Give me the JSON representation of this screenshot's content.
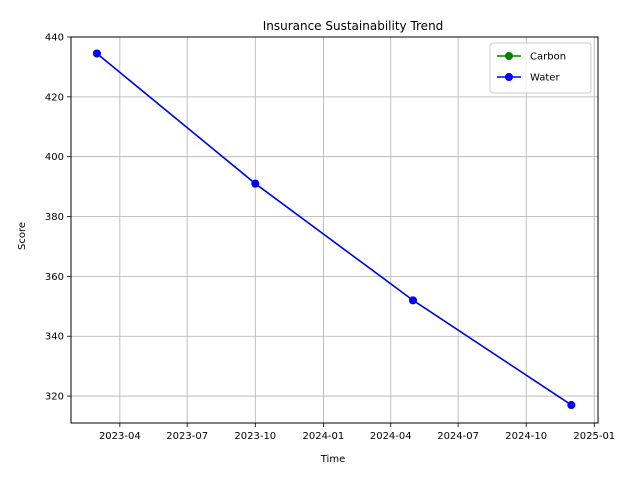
{
  "chart_data": {
    "type": "line",
    "title": "Insurance Sustainability Trend",
    "xlabel": "Time",
    "ylabel": "Score",
    "x": [
      "2023-03-01",
      "2023-10-01",
      "2024-05-01",
      "2024-12-01"
    ],
    "series": [
      {
        "name": "Carbon",
        "color": "#008000",
        "marker": "circle",
        "values": [
          434.5,
          391.0,
          352.0,
          317.0
        ]
      },
      {
        "name": "Water",
        "color": "#0000ff",
        "marker": "circle",
        "values": [
          434.5,
          391.0,
          352.0,
          317.0
        ]
      }
    ],
    "xlim": [
      "2023-01-25",
      "2025-01-06"
    ],
    "ylim": [
      311,
      440
    ],
    "xticks": [
      {
        "date": "2023-04-01",
        "label": "2023-04"
      },
      {
        "date": "2023-07-01",
        "label": "2023-07"
      },
      {
        "date": "2023-10-01",
        "label": "2023-10"
      },
      {
        "date": "2024-01-01",
        "label": "2024-01"
      },
      {
        "date": "2024-04-01",
        "label": "2024-04"
      },
      {
        "date": "2024-07-01",
        "label": "2024-07"
      },
      {
        "date": "2024-10-01",
        "label": "2024-10"
      },
      {
        "date": "2025-01-01",
        "label": "2025-01"
      }
    ],
    "yticks": [
      320,
      340,
      360,
      380,
      400,
      420,
      440
    ],
    "grid": true,
    "legend_position": "top-right"
  }
}
